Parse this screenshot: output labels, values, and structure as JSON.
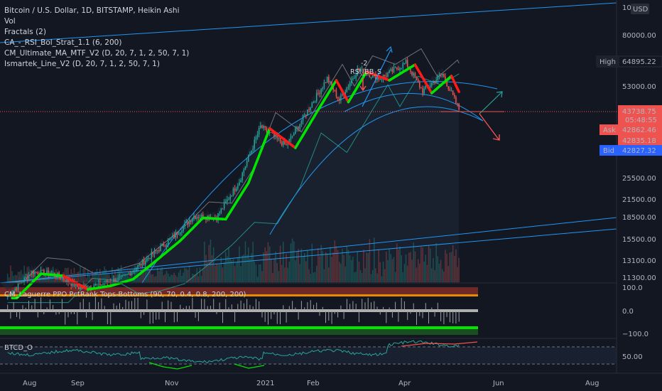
{
  "header": {
    "title": "Bitcoin / U.S. Dollar, 1D, BITSTAMP, Heikin Ashi",
    "indicators": [
      "Vol",
      "Fractals (2)",
      "CA_-_RSI_Bol_Strat_1.1 (6, 200)",
      "CM_Ultimate_MA_MTF_V2 (D, 20, 7, 1, 2, 50, 7, 1)",
      "Ismartek_Line_V2 (D, 20, 7, 1, 2, 50, 7, 1)"
    ]
  },
  "annotations": {
    "fractal_label": "-2",
    "rsi_label": "RSI_BB_S"
  },
  "price_axis": {
    "currency": "USD",
    "top_label": "10",
    "ticks": [
      "80000.00",
      "53000.00",
      "25500.00",
      "21500.00",
      "18500.00",
      "15500.00",
      "13100.00",
      "11300.00"
    ],
    "badges": {
      "high_label": "High",
      "high_value": "64895.22",
      "last_price": "43738.75",
      "countdown": "05:48:55",
      "ask_label": "Ask",
      "ask_value": "42862.46",
      "mid_value": "42835.18",
      "bid_label": "Bid",
      "bid_value": "42827.32"
    }
  },
  "laguerre_panel": {
    "title": "CM_Laguerre PPO PctRank Tops-Bottoms (90, 70, 0.4, 0.8, 200, 200)",
    "ticks": [
      "100.0",
      "0.0",
      "−100.0"
    ]
  },
  "btcd_panel": {
    "title": "BTCD_O",
    "ticks": [
      "50.00"
    ]
  },
  "time_axis": {
    "labels": [
      "Aug",
      "Sep",
      "Nov",
      "2021",
      "Feb",
      "Apr",
      "Jun",
      "Aug"
    ]
  },
  "colors": {
    "background": "#131722",
    "up": "#26a69a",
    "down": "#ef5350",
    "ma_up": "#00e600",
    "ma_down": "#ff1a1a",
    "trendline": "#2196f3",
    "bid": "#2962ff"
  },
  "chart_data": {
    "type": "candlestick",
    "title": "Bitcoin / U.S. Dollar, 1D, BITSTAMP, Heikin Ashi",
    "x_range": [
      "2020-07-20",
      "2021-08-31"
    ],
    "y_scale": "log",
    "series": [
      {
        "name": "Bitcoin / U.S. Dollar",
        "type": "heikin-ashi",
        "points": [
          [
            "2020-07-25",
            9700
          ],
          [
            "2020-08-10",
            11800
          ],
          [
            "2020-08-25",
            11600
          ],
          [
            "2020-09-10",
            10400
          ],
          [
            "2020-09-25",
            10700
          ],
          [
            "2020-10-10",
            11300
          ],
          [
            "2020-10-25",
            13100
          ],
          [
            "2020-11-10",
            15400
          ],
          [
            "2020-11-25",
            18500
          ],
          [
            "2020-12-10",
            18300
          ],
          [
            "2020-12-25",
            24500
          ],
          [
            "2021-01-08",
            38000
          ],
          [
            "2021-01-25",
            32500
          ],
          [
            "2021-02-10",
            45000
          ],
          [
            "2021-02-21",
            56000
          ],
          [
            "2021-03-01",
            47000
          ],
          [
            "2021-03-13",
            60000
          ],
          [
            "2021-03-28",
            56000
          ],
          [
            "2021-04-14",
            63500
          ],
          [
            "2021-04-25",
            50500
          ],
          [
            "2021-05-08",
            58000
          ],
          [
            "2021-05-19",
            43738.75
          ]
        ]
      }
    ],
    "price_levels": {
      "high": 64895.22,
      "last": 43738.75,
      "ask": 42862.46,
      "mid": 42835.18,
      "bid": 42827.32
    }
  }
}
